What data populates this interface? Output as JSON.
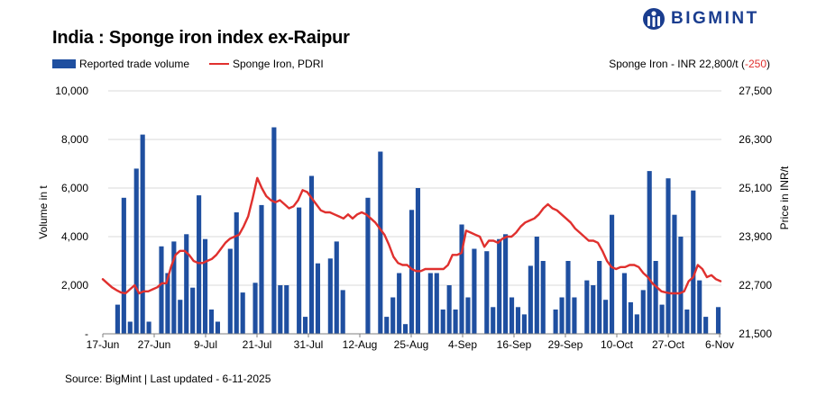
{
  "title": "India : Sponge iron index ex-Raipur",
  "brand": {
    "name": "BIGMINT",
    "logo_icon": "bigmint-logo-icon",
    "color": "#1a3d8f"
  },
  "legend": {
    "bar_label": "Reported trade volume",
    "line_label": "Sponge Iron, PDRI"
  },
  "price_note": {
    "prefix": "Sponge Iron - INR 22,800/t (",
    "change": "-250",
    "suffix": ")"
  },
  "source": "Source: BigMint | Last updated - 6-11-2025",
  "chart_data": {
    "type": "bar+line",
    "colors": {
      "bars": "#1f4fa0",
      "line": "#e0302e",
      "grid": "#d9d9d9"
    },
    "grid": true,
    "legend_position": "top-left",
    "x_tick_labels": [
      "17-Jun",
      "27-Jun",
      "9-Jul",
      "21-Jul",
      "31-Jul",
      "12-Aug",
      "25-Aug",
      "4-Sep",
      "16-Sep",
      "29-Sep",
      "10-Oct",
      "27-Oct",
      "6-Nov"
    ],
    "y_left": {
      "label": "Volume in t",
      "ticks": [
        "-",
        "2,000",
        "4,000",
        "6,000",
        "8,000",
        "10,000"
      ],
      "ylim": [
        0,
        10000
      ]
    },
    "y_right": {
      "label": "Price in INR/t",
      "ticks": [
        "21,500",
        "22,700",
        "23,900",
        "25,100",
        "26,300",
        "27,500"
      ],
      "ylim": [
        21500,
        27500
      ]
    },
    "series": [
      {
        "name": "Reported trade volume",
        "kind": "bar",
        "values": [
          0,
          1200,
          5600,
          500,
          6800,
          8200,
          500,
          0,
          3600,
          2500,
          3800,
          1400,
          4100,
          1900,
          5700,
          3900,
          1000,
          500,
          0,
          3500,
          5000,
          1700,
          0,
          2100,
          5300,
          0,
          8500,
          2000,
          2000,
          0,
          5200,
          700,
          6500,
          2900,
          0,
          3100,
          3800,
          1800,
          0,
          0,
          0,
          5600,
          0,
          7500,
          700,
          1500,
          2500,
          400,
          5100,
          6000,
          0,
          2500,
          2500,
          1000,
          2000,
          1000,
          4500,
          1500,
          3500,
          0,
          3400,
          1100,
          3900,
          4100,
          1500,
          1100,
          800,
          2800,
          4000,
          3000,
          0,
          1000,
          1500,
          3000,
          1500,
          0,
          2200,
          2000,
          3000,
          1400,
          4900,
          0,
          2500,
          1300,
          800,
          1800,
          6700,
          3000,
          1200,
          6400,
          4900,
          4000,
          1000,
          5900,
          2200,
          700,
          0,
          1100
        ]
      },
      {
        "name": "Sponge Iron, PDRI",
        "kind": "line",
        "values": [
          22850,
          22750,
          22650,
          22580,
          22520,
          22500,
          22600,
          22700,
          22500,
          22550,
          22550,
          22600,
          22650,
          22750,
          22750,
          23150,
          23450,
          23550,
          23550,
          23450,
          23300,
          23250,
          23250,
          23300,
          23350,
          23450,
          23600,
          23750,
          23850,
          23900,
          23950,
          24150,
          24400,
          24850,
          25350,
          25100,
          24900,
          24800,
          24750,
          24800,
          24700,
          24600,
          24650,
          24800,
          25050,
          25000,
          24850,
          24700,
          24550,
          24500,
          24500,
          24450,
          24400,
          24350,
          24450,
          24350,
          24450,
          24500,
          24450,
          24350,
          24250,
          24100,
          23950,
          23700,
          23400,
          23250,
          23200,
          23200,
          23100,
          23050,
          23050,
          23100,
          23100,
          23100,
          23100,
          23100,
          23200,
          23450,
          23450,
          23500,
          24050,
          24000,
          23950,
          23900,
          23650,
          23800,
          23800,
          23750,
          23850,
          23900,
          23900,
          24000,
          24150,
          24250,
          24300,
          24350,
          24450,
          24600,
          24700,
          24600,
          24550,
          24450,
          24350,
          24250,
          24100,
          24000,
          23900,
          23800,
          23800,
          23750,
          23550,
          23300,
          23150,
          23100,
          23150,
          23150,
          23200,
          23200,
          23150,
          23000,
          22900,
          22750,
          22650,
          22550,
          22520,
          22500,
          22500,
          22500,
          22550,
          22800,
          22900,
          23200,
          23100,
          22900,
          22950,
          22850,
          22800
        ]
      }
    ]
  }
}
